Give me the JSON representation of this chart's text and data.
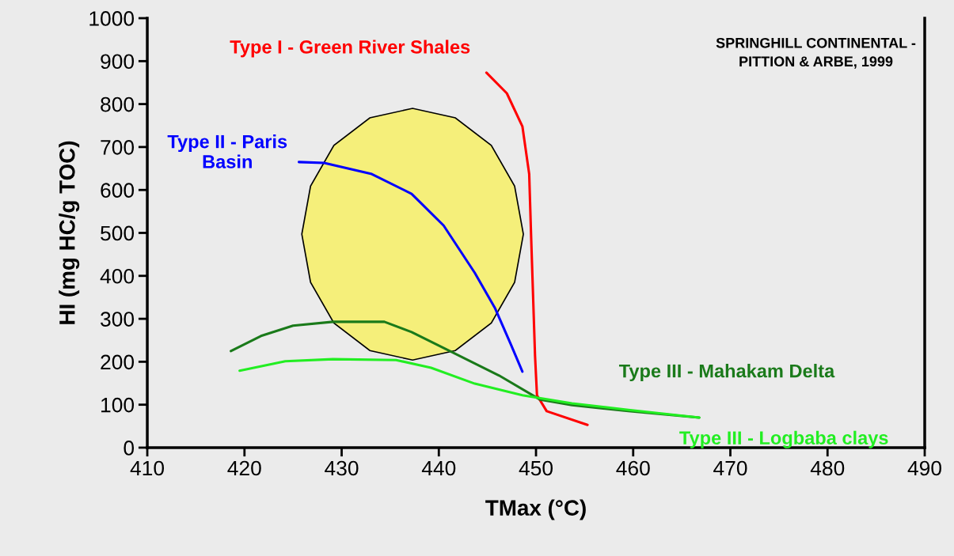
{
  "chart_data": {
    "type": "line",
    "xlabel": "TMax (°C)",
    "ylabel": "HI (mg HC/g TOC)",
    "xlim": [
      410,
      490
    ],
    "xticks": [
      410,
      420,
      430,
      440,
      450,
      460,
      470,
      480,
      490
    ],
    "ylim": [
      0,
      1000
    ],
    "yticks": [
      0,
      100,
      200,
      300,
      400,
      500,
      600,
      700,
      800,
      900,
      1000
    ],
    "grid": false,
    "legend": false,
    "marker": "none",
    "line_style": "solid",
    "annotations": [
      "SPRINGHILL CONTINENTAL -\nPITTION & ARBE, 1999"
    ],
    "series": [
      {
        "type": "area",
        "color": "#f5ef7a",
        "x": [
          448.7,
          447.8,
          445.4,
          441.7,
          437.3,
          432.9,
          429.2,
          426.8,
          425.9,
          426.8,
          429.2,
          432.9,
          437.3,
          441.7,
          445.4,
          447.8,
          448.7
        ],
        "values": [
          497,
          609,
          704,
          768,
          790,
          768,
          704,
          609,
          497,
          385,
          290,
          226,
          204,
          226,
          290,
          385,
          497
        ]
      },
      {
        "name": "Type I - Green River Shales",
        "color": "#ff0000",
        "x": [
          444.9,
          447.0,
          448.6,
          449.3,
          449.5,
          449.9,
          450.1,
          451.1,
          455.3
        ],
        "values": [
          873,
          825,
          748,
          637,
          490,
          214,
          122,
          85,
          53
        ]
      },
      {
        "name": "Type II - Paris\nBasin",
        "color": "#0000ff",
        "x": [
          425.6,
          428.2,
          433.1,
          437.2,
          440.5,
          443.7,
          445.8,
          447.4,
          448.6
        ],
        "values": [
          665,
          663,
          637,
          591,
          517,
          407,
          324,
          241,
          177
        ]
      },
      {
        "name": "Type III - Mahakam Delta",
        "color": "#1a7a1a",
        "x": [
          418.6,
          421.7,
          425.0,
          429.1,
          434.4,
          437.2,
          441.3,
          446.2,
          450.4,
          453.7,
          459.5,
          466.8
        ],
        "values": [
          225,
          260,
          284,
          293,
          293,
          269,
          223,
          168,
          112,
          99,
          85,
          70
        ]
      },
      {
        "name": "Type III - Logbaba clays",
        "color": "#22ee22",
        "x": [
          419.5,
          424.2,
          429.1,
          435.6,
          439.2,
          443.7,
          448.6,
          453.7,
          459.5,
          466.8
        ],
        "values": [
          179,
          201,
          206,
          204,
          186,
          149,
          122,
          103,
          88,
          70
        ]
      }
    ]
  }
}
